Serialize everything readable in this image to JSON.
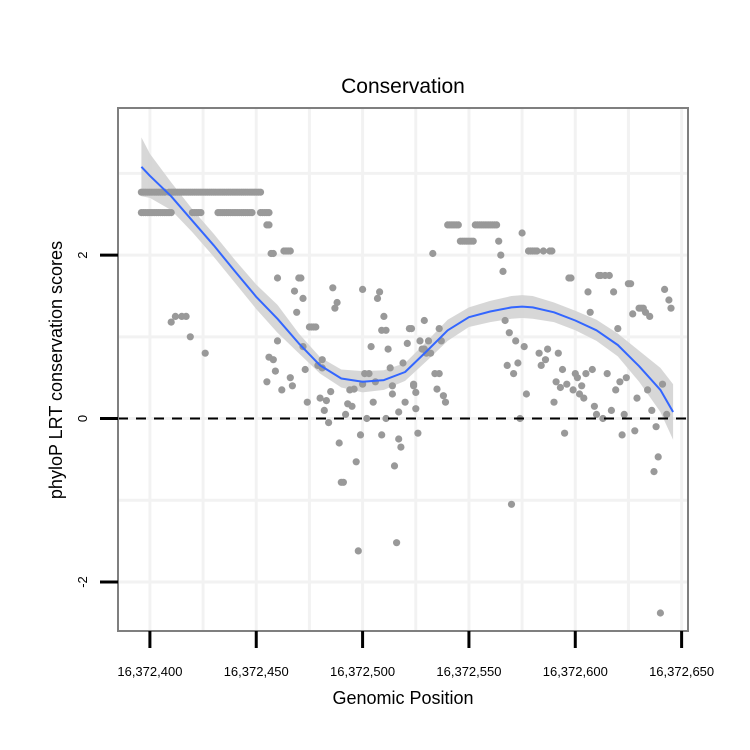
{
  "chart_data": {
    "type": "scatter",
    "title": "Conservation",
    "xlabel": "Genomic Position",
    "ylabel": "phyloP LRT conservation scores",
    "xlim": [
      16372385,
      16372653
    ],
    "ylim": [
      -2.6,
      3.8
    ],
    "x_ticks": [
      16372400,
      16372450,
      16372500,
      16372550,
      16372600,
      16372650
    ],
    "x_tick_labels": [
      "16,372,400",
      "16,372,450",
      "16,372,500",
      "16,372,550",
      "16,372,600",
      "16,372,650"
    ],
    "y_ticks": [
      -2,
      0,
      2
    ],
    "y_tick_labels": [
      "-2",
      "0",
      "2"
    ],
    "reference_line": {
      "y": 0,
      "style": "dashed"
    },
    "colors": {
      "points": "#999999",
      "smooth": "#3366ff",
      "band": "#d3d3d3",
      "panel_border": "#7f7f7f"
    },
    "series": [
      {
        "name": "scores",
        "kind": "points",
        "x": [
          16372396,
          16372397,
          16372398,
          16372399,
          16372400,
          16372401,
          16372402,
          16372403,
          16372404,
          16372405,
          16372406,
          16372407,
          16372409,
          16372410,
          16372411,
          16372412,
          16372413,
          16372414,
          16372415,
          16372416,
          16372417,
          16372418,
          16372419,
          16372420,
          16372421,
          16372422,
          16372423,
          16372424,
          16372425,
          16372426,
          16372427,
          16372428,
          16372429,
          16372430,
          16372431,
          16372432,
          16372433,
          16372434,
          16372435,
          16372436,
          16372437,
          16372438,
          16372439,
          16372440,
          16372441,
          16372442,
          16372443,
          16372444,
          16372445,
          16372446,
          16372447,
          16372448,
          16372449,
          16372450,
          16372451,
          16372452,
          16372455,
          16372456,
          16372457,
          16372458,
          16372396,
          16372397,
          16372398,
          16372399,
          16372400,
          16372401,
          16372402,
          16372403,
          16372404,
          16372405,
          16372406,
          16372407,
          16372408,
          16372409,
          16372410,
          16372420,
          16372421,
          16372422,
          16372423,
          16372424,
          16372432,
          16372433,
          16372434,
          16372435,
          16372436,
          16372437,
          16372438,
          16372439,
          16372440,
          16372441,
          16372442,
          16372443,
          16372444,
          16372445,
          16372446,
          16372447,
          16372448,
          16372452,
          16372453,
          16372454,
          16372455,
          16372456,
          16372460,
          16372463,
          16372464,
          16372465,
          16372466,
          16372468,
          16372470,
          16372471,
          16372472,
          16372475,
          16372476,
          16372477,
          16372478,
          16372479,
          16372480,
          16372481,
          16372482,
          16372483,
          16372484,
          16372485,
          16372488,
          16372489,
          16372490,
          16372491,
          16372492,
          16372493,
          16372495,
          16372496,
          16372497,
          16372498,
          16372499,
          16372500,
          16372501,
          16372503,
          16372504,
          16372505,
          16372506,
          16372507,
          16372508,
          16372509,
          16372510,
          16372511,
          16372512,
          16372513,
          16372514,
          16372515,
          16372516,
          16372517,
          16372518,
          16372519,
          16372520,
          16372521,
          16372522,
          16372523,
          16372524,
          16372525,
          16372526,
          16372527,
          16372528,
          16372529,
          16372530,
          16372531,
          16372532,
          16372533,
          16372534,
          16372535,
          16372536,
          16372537,
          16372538,
          16372539,
          16372540,
          16372541,
          16372542,
          16372543,
          16372544,
          16372545,
          16372546,
          16372547,
          16372548,
          16372549,
          16372550,
          16372551,
          16372552,
          16372553,
          16372554,
          16372555,
          16372556,
          16372557,
          16372558,
          16372559,
          16372560,
          16372561,
          16372562,
          16372563,
          16372564,
          16372565,
          16372566,
          16372567,
          16372568,
          16372569,
          16372570,
          16372571,
          16372572,
          16372573,
          16372574,
          16372575,
          16372576,
          16372577,
          16372578,
          16372579,
          16372580,
          16372581,
          16372582,
          16372583,
          16372584,
          16372585,
          16372586,
          16372587,
          16372588,
          16372589,
          16372590,
          16372591,
          16372592,
          16372593,
          16372594,
          16372595,
          16372596,
          16372597,
          16372598,
          16372599,
          16372600,
          16372601,
          16372602,
          16372603,
          16372604,
          16372605,
          16372606,
          16372607,
          16372608,
          16372609,
          16372610,
          16372611,
          16372612,
          16372613,
          16372614,
          16372615,
          16372616,
          16372617,
          16372618,
          16372619,
          16372620,
          16372621,
          16372622,
          16372623,
          16372624,
          16372625,
          16372626,
          16372627,
          16372628,
          16372629,
          16372630,
          16372631,
          16372632,
          16372633,
          16372634,
          16372635,
          16372636,
          16372637,
          16372638,
          16372639,
          16372640,
          16372641,
          16372642,
          16372643,
          16372644,
          16372645,
          16372410,
          16372412,
          16372415,
          16372417,
          16372419,
          16372426,
          16372455,
          16372458,
          16372460,
          16372462,
          16372467,
          16372469,
          16372473,
          16372474,
          16372486,
          16372487,
          16372494,
          16372502,
          16372509,
          16372514,
          16372524,
          16372525,
          16372529,
          16372536,
          16372456,
          16372459,
          16372466,
          16372472,
          16372481,
          16372500,
          16372511,
          16372517
        ],
        "y": [
          2.77,
          2.77,
          2.77,
          2.77,
          2.77,
          2.77,
          2.77,
          2.77,
          2.77,
          2.77,
          2.77,
          2.77,
          2.77,
          2.77,
          2.77,
          2.77,
          2.77,
          2.77,
          2.77,
          2.77,
          2.77,
          2.77,
          2.77,
          2.77,
          2.77,
          2.77,
          2.77,
          2.77,
          2.77,
          2.77,
          2.77,
          2.77,
          2.77,
          2.77,
          2.77,
          2.77,
          2.77,
          2.77,
          2.77,
          2.77,
          2.77,
          2.77,
          2.77,
          2.77,
          2.77,
          2.77,
          2.77,
          2.77,
          2.77,
          2.77,
          2.77,
          2.77,
          2.77,
          2.77,
          2.77,
          2.77,
          2.37,
          2.37,
          2.02,
          2.02,
          2.52,
          2.52,
          2.52,
          2.52,
          2.52,
          2.52,
          2.52,
          2.52,
          2.52,
          2.52,
          2.52,
          2.52,
          2.52,
          2.52,
          2.52,
          2.52,
          2.52,
          2.52,
          2.52,
          2.52,
          2.52,
          2.52,
          2.52,
          2.52,
          2.52,
          2.52,
          2.52,
          2.52,
          2.52,
          2.52,
          2.52,
          2.52,
          2.52,
          2.52,
          2.52,
          2.52,
          2.52,
          2.52,
          2.52,
          2.52,
          2.52,
          2.52,
          1.72,
          2.05,
          2.05,
          2.05,
          2.05,
          1.56,
          1.72,
          1.72,
          1.47,
          1.12,
          1.12,
          1.12,
          1.12,
          0.65,
          0.25,
          0.62,
          0.1,
          0.22,
          -0.05,
          0.33,
          1.42,
          -0.3,
          -0.78,
          -0.78,
          0.05,
          0.18,
          0.15,
          0.36,
          -0.53,
          -1.62,
          -0.2,
          0.42,
          0.55,
          0.55,
          0.88,
          0.2,
          0.45,
          1.47,
          1.55,
          1.08,
          1.25,
          1.08,
          0.85,
          0.62,
          0.4,
          -0.58,
          -1.52,
          0.08,
          -0.35,
          0.68,
          0.2,
          0.92,
          1.1,
          1.1,
          0.4,
          0.32,
          -0.18,
          0.95,
          0.85,
          0.85,
          0.8,
          0.95,
          0.8,
          2.02,
          0.55,
          0.36,
          0.55,
          0.95,
          0.28,
          0.2,
          2.37,
          2.37,
          2.37,
          2.37,
          2.37,
          2.37,
          2.17,
          2.17,
          2.17,
          2.17,
          2.17,
          2.17,
          2.17,
          2.37,
          2.37,
          2.37,
          2.37,
          2.37,
          2.37,
          2.37,
          2.37,
          2.37,
          2.37,
          2.37,
          2.17,
          2.0,
          1.8,
          1.2,
          0.65,
          1.05,
          -1.05,
          0.55,
          0.95,
          0.68,
          0.0,
          2.27,
          0.88,
          0.3,
          2.05,
          2.05,
          2.05,
          2.05,
          2.05,
          0.8,
          0.65,
          2.05,
          0.72,
          0.85,
          2.05,
          2.05,
          0.2,
          0.45,
          0.8,
          0.38,
          0.6,
          -0.18,
          0.42,
          1.72,
          1.72,
          0.35,
          0.55,
          0.5,
          0.3,
          0.4,
          0.25,
          0.55,
          1.55,
          1.3,
          0.6,
          0.15,
          0.05,
          1.75,
          1.75,
          0.0,
          1.75,
          0.55,
          1.75,
          0.1,
          1.55,
          0.35,
          1.1,
          0.45,
          -0.2,
          0.05,
          0.5,
          1.65,
          1.65,
          1.28,
          -0.15,
          0.25,
          1.35,
          1.35,
          1.35,
          1.3,
          0.35,
          1.25,
          0.1,
          -0.65,
          -0.1,
          -0.47,
          -2.38,
          0.42,
          1.58,
          0.05,
          1.45,
          1.35,
          1.18,
          1.25,
          1.25,
          1.25,
          1.0,
          0.8,
          0.45,
          0.72,
          0.95,
          0.35,
          0.4,
          1.3,
          0.6,
          0.2,
          1.6,
          1.35,
          0.35,
          0.0,
          -0.2,
          0.3,
          0.42,
          0.12,
          1.2,
          1.1,
          0.75,
          0.58,
          0.5,
          0.88,
          0.72,
          1.58,
          0.0,
          -0.25
        ],
        "color": "#999999"
      },
      {
        "name": "loess fit",
        "kind": "line",
        "x": [
          16372396,
          16372400,
          16372410,
          16372420,
          16372430,
          16372440,
          16372450,
          16372460,
          16372470,
          16372480,
          16372490,
          16372500,
          16372510,
          16372520,
          16372530,
          16372540,
          16372550,
          16372560,
          16372570,
          16372575,
          16372580,
          16372590,
          16372600,
          16372610,
          16372620,
          16372630,
          16372640,
          16372646
        ],
        "y": [
          3.08,
          2.97,
          2.72,
          2.42,
          2.12,
          1.8,
          1.49,
          1.22,
          0.92,
          0.65,
          0.49,
          0.45,
          0.47,
          0.57,
          0.82,
          1.08,
          1.24,
          1.31,
          1.36,
          1.37,
          1.36,
          1.3,
          1.2,
          1.08,
          0.9,
          0.64,
          0.35,
          0.08
        ],
        "color": "#3366ff"
      },
      {
        "name": "confidence band",
        "kind": "band",
        "x": [
          16372396,
          16372400,
          16372410,
          16372420,
          16372430,
          16372440,
          16372450,
          16372460,
          16372470,
          16372480,
          16372490,
          16372500,
          16372510,
          16372520,
          16372530,
          16372540,
          16372550,
          16372560,
          16372570,
          16372575,
          16372580,
          16372590,
          16372600,
          16372610,
          16372620,
          16372630,
          16372640,
          16372646
        ],
        "lower": [
          2.72,
          2.7,
          2.55,
          2.28,
          1.98,
          1.66,
          1.34,
          1.05,
          0.8,
          0.55,
          0.38,
          0.32,
          0.35,
          0.46,
          0.7,
          0.95,
          1.12,
          1.18,
          1.22,
          1.23,
          1.22,
          1.18,
          1.08,
          0.95,
          0.76,
          0.45,
          0.08,
          -0.26
        ],
        "upper": [
          3.44,
          3.24,
          2.89,
          2.56,
          2.26,
          1.94,
          1.64,
          1.39,
          1.04,
          0.75,
          0.6,
          0.58,
          0.59,
          0.68,
          0.94,
          1.21,
          1.36,
          1.44,
          1.5,
          1.51,
          1.5,
          1.42,
          1.32,
          1.21,
          1.04,
          0.83,
          0.62,
          0.42
        ],
        "color": "#d3d3d3"
      }
    ]
  }
}
